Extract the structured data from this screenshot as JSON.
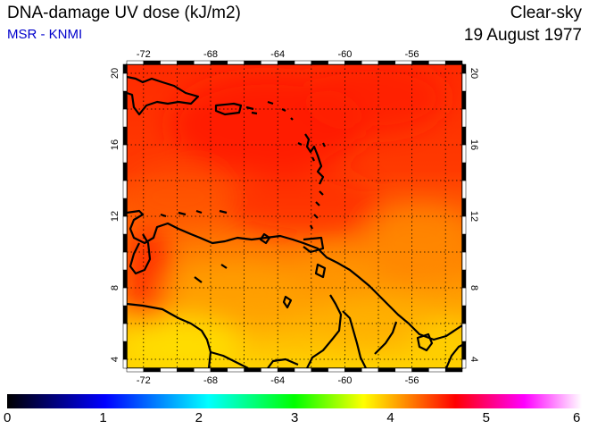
{
  "header": {
    "title": "DNA-damage UV dose (kJ/m2)",
    "subtitle": "MSR - KNMI",
    "sky": "Clear-sky",
    "date": "19 August 1977"
  },
  "map": {
    "lon_range": [
      -73,
      -53
    ],
    "lat_range": [
      3.5,
      20.5
    ],
    "lon_ticks": [
      {
        "label": "-72",
        "lon": -72
      },
      {
        "label": "-68",
        "lon": -68
      },
      {
        "label": "-64",
        "lon": -64
      },
      {
        "label": "-60",
        "lon": -60
      },
      {
        "label": "-56",
        "lon": -56
      }
    ],
    "lat_ticks": [
      {
        "label": "4",
        "lat": 4
      },
      {
        "label": "8",
        "lat": 8
      },
      {
        "label": "12",
        "lat": 12
      },
      {
        "label": "16",
        "lat": 16
      },
      {
        "label": "20",
        "lat": 20
      }
    ],
    "gridlines": "dotted",
    "field_colors": {
      "low": "#ffff00",
      "mid": "#ffa500",
      "high": "#ff3300",
      "peak": "#ff0000"
    }
  },
  "colorbar": {
    "labels": [
      "0",
      "1",
      "2",
      "3",
      "4",
      "5",
      "6"
    ],
    "stops": [
      "#000000",
      "#0000ff",
      "#00ffff",
      "#00ff00",
      "#ffff00",
      "#ff8000",
      "#ff0000",
      "#ff00ff",
      "#ffffff"
    ]
  }
}
